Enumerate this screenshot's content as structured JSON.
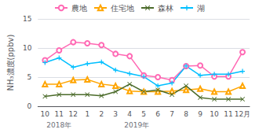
{
  "chart_data": {
    "type": "line",
    "categories": [
      "10",
      "11",
      "12",
      "1",
      "2",
      "3",
      "4",
      "5",
      "6",
      "7",
      "8",
      "9",
      "10",
      "11",
      "12月"
    ],
    "series": [
      {
        "name": "農地",
        "color": "#FF69B4",
        "marker": "circle",
        "values": [
          7.9,
          9.6,
          11.0,
          10.8,
          10.5,
          9.0,
          8.6,
          5.3,
          5.0,
          4.5,
          6.9,
          7.0,
          5.1,
          5.1,
          9.3
        ]
      },
      {
        "name": "住宅地",
        "color": "#FFA500",
        "marker": "triangle",
        "values": [
          3.8,
          3.8,
          4.5,
          4.6,
          3.8,
          3.5,
          2.6,
          2.5,
          2.5,
          2.6,
          2.8,
          3.0,
          2.5,
          2.5,
          3.5
        ]
      },
      {
        "name": "森林",
        "color": "#4B6B2A",
        "marker": "x",
        "values": [
          1.7,
          2.0,
          2.0,
          2.0,
          1.8,
          2.5,
          3.8,
          2.5,
          2.8,
          2.0,
          3.5,
          1.5,
          1.2,
          1.2,
          1.2
        ]
      },
      {
        "name": "湖",
        "color": "#00BFFF",
        "marker": "plus",
        "values": [
          7.5,
          8.3,
          6.7,
          7.3,
          7.6,
          6.2,
          5.6,
          5.1,
          3.5,
          4.0,
          6.9,
          5.3,
          5.5,
          5.5,
          6.0
        ]
      }
    ],
    "ylabel": "NH₃濃度(ppbv)",
    "ylim": [
      0,
      15
    ],
    "yticks": [
      0,
      5,
      10,
      15
    ],
    "annotations": [
      "2018年",
      "2019年"
    ],
    "grid": true,
    "legend": "top"
  }
}
